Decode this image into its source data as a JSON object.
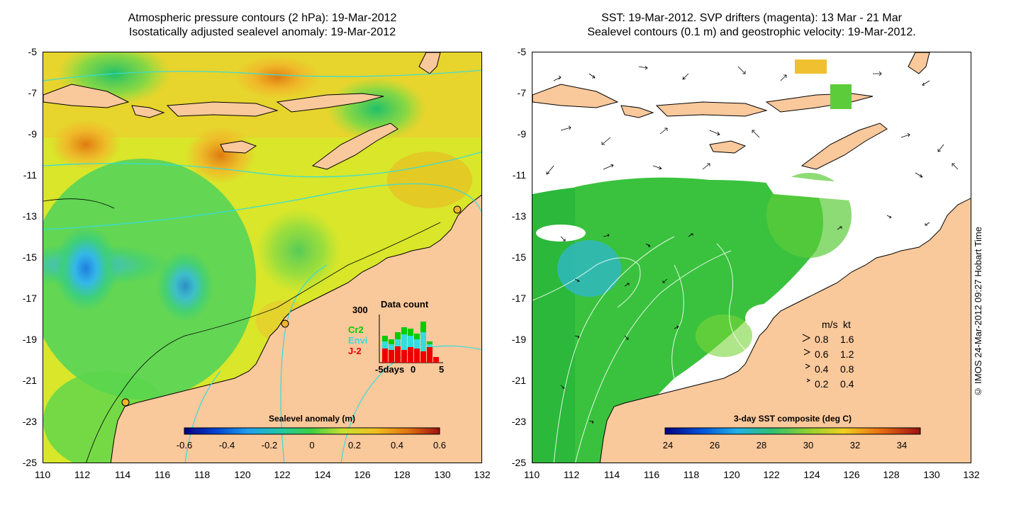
{
  "left": {
    "title1": "Atmospheric pressure contours (2 hPa): 19-Mar-2012",
    "title2": "Isostatically adjusted sealevel anomaly: 19-Mar-2012",
    "colorbar": {
      "label": "Sealevel anomaly (m)",
      "ticks": [
        "-0.6",
        "-0.4",
        "-0.2",
        "0",
        "0.2",
        "0.4",
        "0.6"
      ]
    },
    "datacount": {
      "title": "Data count",
      "ymax": "300",
      "series": [
        {
          "name": "Cr2",
          "color": "#00cc00"
        },
        {
          "name": "Envi",
          "color": "#33dddd"
        },
        {
          "name": "J-2",
          "color": "#ee0000"
        }
      ],
      "xticks": [
        "-5days",
        "0",
        "5"
      ]
    }
  },
  "right": {
    "title1": "SST: 19-Mar-2012. SVP drifters (magenta): 13 Mar - 21 Mar",
    "title2": "Sealevel contours (0.1 m) and geostrophic velocity: 19-Mar-2012.",
    "colorbar": {
      "label": "3-day SST composite (deg C)",
      "ticks": [
        "24",
        "26",
        "28",
        "30",
        "32",
        "34"
      ]
    },
    "speed_legend": {
      "header_ms": "m/s",
      "header_kt": "kt",
      "rows": [
        {
          "ms": "0.8",
          "kt": "1.6"
        },
        {
          "ms": "0.6",
          "kt": "1.2"
        },
        {
          "ms": "0.4",
          "kt": "0.8"
        },
        {
          "ms": "0.2",
          "kt": "0.4"
        }
      ]
    }
  },
  "axes": {
    "y_ticks": [
      "-5",
      "-7",
      "-9",
      "-11",
      "-13",
      "-15",
      "-17",
      "-19",
      "-21",
      "-23",
      "-25"
    ],
    "x_ticks": [
      "110",
      "112",
      "114",
      "116",
      "118",
      "120",
      "122",
      "124",
      "126",
      "128",
      "130",
      "132"
    ]
  },
  "credit": "© IMOS 24-Mar-2012 09:27 Hobart Time",
  "colors": {
    "land": "#f9c89b",
    "cloud": "#ffffff",
    "coast_contour": "#33dddd"
  }
}
